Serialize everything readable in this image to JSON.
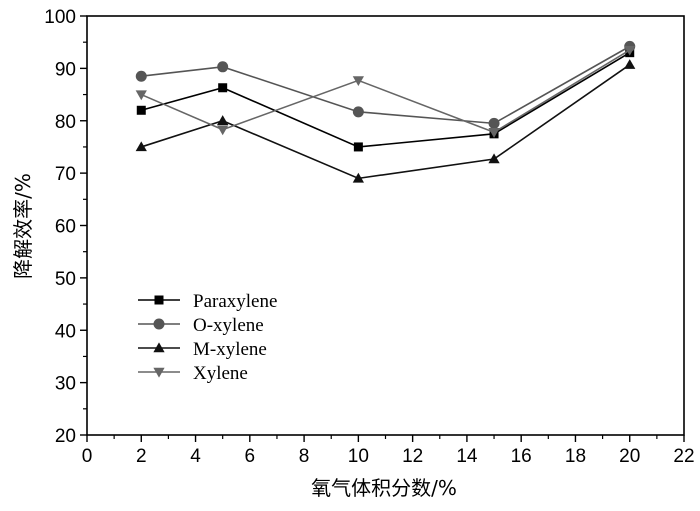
{
  "chart_data": {
    "type": "line",
    "title": "",
    "xlabel": "氧气体积分数/%",
    "ylabel": "降解效率/%",
    "xlim": [
      0,
      22
    ],
    "ylim": [
      20,
      100
    ],
    "x_ticks": [
      0,
      2,
      4,
      6,
      8,
      10,
      12,
      14,
      16,
      18,
      20,
      22
    ],
    "y_ticks": [
      20,
      30,
      40,
      50,
      60,
      70,
      80,
      90,
      100
    ],
    "grid": false,
    "legend_position": "lower-left",
    "x": [
      2,
      5,
      10,
      15,
      20
    ],
    "series": [
      {
        "name": "Paraxylene",
        "marker": "square",
        "color": "#000000",
        "values": [
          82,
          86.3,
          75,
          77.5,
          93
        ]
      },
      {
        "name": "O-xylene",
        "marker": "circle",
        "color": "#555555",
        "values": [
          88.5,
          90.3,
          81.7,
          79.5,
          94.2
        ]
      },
      {
        "name": "M-xylene",
        "marker": "triangle-up",
        "color": "#111111",
        "values": [
          75,
          80,
          69,
          72.7,
          90.7
        ]
      },
      {
        "name": "Xylene",
        "marker": "triangle-down",
        "color": "#666666",
        "values": [
          85,
          78.3,
          87.7,
          77.8,
          93.5
        ]
      }
    ]
  }
}
